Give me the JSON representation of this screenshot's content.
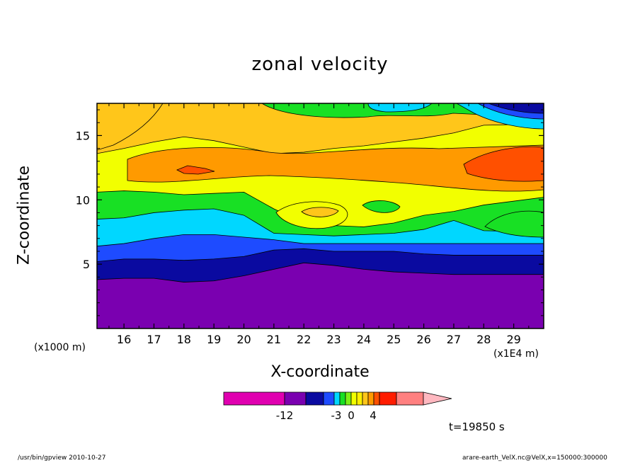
{
  "chart_data": {
    "type": "heatmap",
    "title": "zonal velocity",
    "xlabel": "X-coordinate",
    "ylabel": "Z-coordinate",
    "x_units_label": "(x1E4 m)",
    "y_units_label": "(x1000 m)",
    "xlim": [
      15.1,
      30.0
    ],
    "ylim": [
      0,
      17.5
    ],
    "x_ticks": [
      16,
      17,
      18,
      19,
      20,
      21,
      22,
      23,
      24,
      25,
      26,
      27,
      28,
      29
    ],
    "y_ticks": [
      5,
      10,
      15
    ],
    "colorbar": {
      "tick_labels": [
        "-12",
        "-3",
        "0",
        "4"
      ],
      "colors": [
        "#e000b0",
        "#7a00b0",
        "#0a0aa0",
        "#1e4bff",
        "#00d7ff",
        "#18e024",
        "#7cf016",
        "#f2ff00",
        "#fff000",
        "#ffc61a",
        "#ff9a00",
        "#ff5000",
        "#ff1c00",
        "#ff8080",
        "#ffb8c0"
      ]
    },
    "field_bands": [
      {
        "level": "< -12",
        "color": "#7a00b0",
        "upper_edge_z": [
          3.8,
          3.9,
          3.9,
          3.6,
          3.7,
          4.1,
          4.6,
          5.1,
          4.9,
          4.6,
          4.4,
          4.3,
          4.2,
          4.2,
          4.2
        ]
      },
      {
        "level": "-12 to -9",
        "color": "#0a0aa0",
        "upper_edge_z": [
          5.2,
          5.4,
          5.4,
          5.3,
          5.4,
          5.6,
          6.1,
          6.2,
          6.0,
          6.0,
          6.0,
          5.8,
          5.7,
          5.7,
          5.7
        ]
      },
      {
        "level": "-9 to -6",
        "color": "#1e4bff",
        "upper_edge_z": [
          6.4,
          6.6,
          7.0,
          7.3,
          7.3,
          7.1,
          6.9,
          6.6,
          6.6,
          6.6,
          6.6,
          6.6,
          6.6,
          6.6,
          6.6
        ]
      },
      {
        "level": "-6 to -3",
        "color": "#00d7ff",
        "upper_edge_z": [
          8.5,
          8.6,
          9.0,
          9.2,
          9.3,
          8.8,
          7.4,
          7.3,
          7.2,
          7.3,
          7.4,
          7.7,
          8.4,
          7.6,
          7.5
        ]
      },
      {
        "level": "-3 to 0",
        "color": "#18e024",
        "upper_edge_z": [
          10.6,
          10.7,
          10.6,
          10.4,
          10.5,
          10.6,
          9.3,
          8.2,
          8.0,
          7.9,
          8.2,
          8.8,
          9.1,
          9.6,
          10.2
        ]
      },
      {
        "level": "0 to 2",
        "color": "#f2ff00",
        "upper_edge_z": [
          13.6,
          14.0,
          14.5,
          14.9,
          14.6,
          14.1,
          13.6,
          13.7,
          14.0,
          14.2,
          14.5,
          14.8,
          15.2,
          15.8,
          15.9
        ]
      },
      {
        "level": "2 to 4",
        "color": "#ffc61a",
        "upper_edge_z": [
          17.5,
          17.5,
          17.5,
          17.5,
          17.5,
          17.5,
          17.5,
          17.5,
          17.5,
          17.5,
          17.5,
          17.5,
          17.5,
          17.5,
          17.5
        ]
      }
    ],
    "band_x": [
      15.1,
      16.0,
      17.0,
      18.0,
      19.0,
      20.0,
      21.0,
      22.0,
      23.0,
      24.0,
      25.0,
      26.0,
      27.0,
      28.0,
      30.0
    ]
  },
  "labels": {
    "time": "t=19850 s",
    "footer_left": "/usr/bin/gpview   2010-10-27",
    "footer_right": "arare-earth_VelX.nc@VelX,x=150000:300000"
  }
}
